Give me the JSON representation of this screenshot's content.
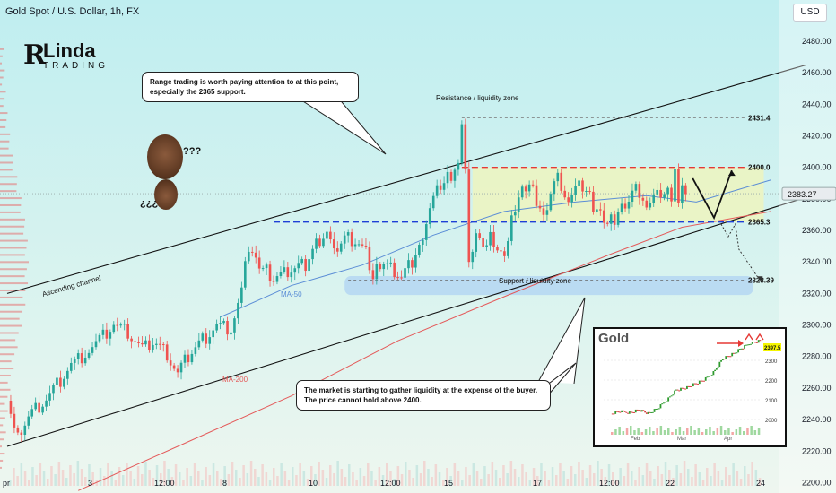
{
  "header": {
    "symbol_title": "Gold Spot / U.S. Dollar, 1h, FX",
    "currency": "USD"
  },
  "logo": {
    "name": "Linda",
    "sub": "TRADING"
  },
  "annotations": {
    "callout_top": "Range trading is worth paying attention to at this point, especially the 2365 support.",
    "callout_bottom": "The market is starting to gather liquidity at the expense of the buyer. The price cannot hold above 2400.",
    "resistance_zone": "Resistance / liquidity zone",
    "support_zone": "Support / liquidity zone",
    "ascending_channel": "Ascending channel",
    "ma50": "MA-50",
    "ma200": "MA-200",
    "question_marks": "???",
    "inverted_question_marks": "¿¿¿"
  },
  "colors": {
    "up": "#26a69a",
    "down": "#ef5350",
    "ma50": "#5b8dd6",
    "ma200": "#e45a5a",
    "res_line": "#e53935",
    "sup_line": "#1e3fd6",
    "range_fill": "#f1f4b8",
    "support_zone_fill": "#b6d8f2",
    "price_label_bg": "#e8ecef"
  },
  "chart_data": {
    "type": "line",
    "title": "Gold Spot / U.S. Dollar, 1h, FX",
    "y_axis": {
      "ylim": [
        2198,
        2497
      ],
      "ticks": [
        2200,
        2220,
        2240,
        2260,
        2280,
        2300,
        2320,
        2340,
        2360,
        2380,
        2400,
        2420,
        2440,
        2460,
        2480
      ],
      "current_price": "2383.27"
    },
    "x_axis": {
      "tick_labels": [
        "pr",
        "3",
        "12:00",
        "8",
        "10",
        "12:00",
        "15",
        "17",
        "12:00",
        "22",
        "24"
      ]
    },
    "price_path": [
      [
        0,
        2252
      ],
      [
        0.1,
        2240
      ],
      [
        0.3,
        2230
      ],
      [
        0.6,
        2242
      ],
      [
        1,
        2250
      ],
      [
        1.4,
        2262
      ],
      [
        1.8,
        2275
      ],
      [
        2.2,
        2282
      ],
      [
        2.6,
        2290
      ],
      [
        3,
        2300
      ],
      [
        3.4,
        2295
      ],
      [
        3.8,
        2285
      ],
      [
        4.1,
        2290
      ],
      [
        4.5,
        2282
      ],
      [
        4.8,
        2270
      ],
      [
        5.1,
        2280
      ],
      [
        5.5,
        2290
      ],
      [
        5.9,
        2300
      ],
      [
        6.3,
        2298
      ],
      [
        6.6,
        2322
      ],
      [
        6.8,
        2350
      ],
      [
        7,
        2340
      ],
      [
        7.2,
        2337
      ],
      [
        7.5,
        2330
      ],
      [
        7.8,
        2333
      ],
      [
        8.1,
        2336
      ],
      [
        8.4,
        2338
      ],
      [
        8.7,
        2352
      ],
      [
        9,
        2360
      ],
      [
        9.2,
        2345
      ],
      [
        9.5,
        2355
      ],
      [
        9.8,
        2353
      ],
      [
        10.1,
        2345
      ],
      [
        10.3,
        2330
      ],
      [
        10.5,
        2340
      ],
      [
        10.8,
        2336
      ],
      [
        11.1,
        2330
      ],
      [
        11.4,
        2340
      ],
      [
        11.6,
        2350
      ],
      [
        11.9,
        2375
      ],
      [
        12.1,
        2385
      ],
      [
        12.3,
        2390
      ],
      [
        12.5,
        2395
      ],
      [
        12.7,
        2400
      ],
      [
        12.8,
        2430
      ],
      [
        12.9,
        2395
      ],
      [
        13,
        2340
      ],
      [
        13.2,
        2360
      ],
      [
        13.4,
        2345
      ],
      [
        13.6,
        2358
      ],
      [
        13.8,
        2350
      ],
      [
        14,
        2340
      ],
      [
        14.1,
        2355
      ],
      [
        14.3,
        2375
      ],
      [
        14.5,
        2385
      ],
      [
        14.7,
        2390
      ],
      [
        14.9,
        2380
      ],
      [
        15.1,
        2368
      ],
      [
        15.3,
        2385
      ],
      [
        15.5,
        2392
      ],
      [
        15.7,
        2380
      ],
      [
        15.9,
        2385
      ],
      [
        16.1,
        2388
      ],
      [
        16.3,
        2385
      ],
      [
        16.5,
        2375
      ],
      [
        16.7,
        2370
      ],
      [
        16.9,
        2365
      ],
      [
        17.1,
        2368
      ],
      [
        17.3,
        2375
      ],
      [
        17.5,
        2380
      ],
      [
        17.7,
        2385
      ],
      [
        17.9,
        2378
      ],
      [
        18.1,
        2380
      ],
      [
        18.3,
        2382
      ],
      [
        18.5,
        2383
      ],
      [
        18.7,
        2382
      ],
      [
        18.8,
        2398
      ],
      [
        18.9,
        2380
      ],
      [
        19,
        2385
      ],
      [
        19.1,
        2383
      ]
    ],
    "levels": [
      {
        "label": "2431.4",
        "value": 2431.4
      },
      {
        "label": "2400.0",
        "value": 2400.0
      },
      {
        "label": "2365.3",
        "value": 2365.3
      },
      {
        "label": "2328.39",
        "value": 2328.39
      }
    ],
    "channel": {
      "upper": [
        [
          0,
          2320
        ],
        [
          22.5,
          2465
        ]
      ],
      "lower": [
        [
          0,
          2223
        ],
        [
          22.5,
          2381
        ]
      ]
    },
    "projection": {
      "main": [
        [
          19.3,
          2393
        ],
        [
          19.9,
          2368
        ],
        [
          20.4,
          2398
        ]
      ],
      "alt": [
        [
          20.1,
          2364
        ],
        [
          20.3,
          2356
        ],
        [
          20.5,
          2364
        ],
        [
          20.6,
          2348
        ],
        [
          21.2,
          2328
        ]
      ]
    },
    "ma50": [
      [
        6,
        2305
      ],
      [
        8,
        2325
      ],
      [
        10,
        2338
      ],
      [
        12,
        2357
      ],
      [
        14,
        2372
      ],
      [
        16,
        2378
      ],
      [
        18,
        2382
      ],
      [
        19.4,
        2378
      ],
      [
        21.5,
        2392
      ]
    ],
    "ma200": [
      [
        2,
        2195
      ],
      [
        5,
        2225
      ],
      [
        8,
        2255
      ],
      [
        11,
        2290
      ],
      [
        14,
        2318
      ],
      [
        17,
        2345
      ],
      [
        19,
        2362
      ],
      [
        21.5,
        2372
      ]
    ],
    "inset": {
      "title": "Gold",
      "price_badge": "2397.5",
      "ticks": [
        "2300",
        "2200",
        "2100",
        "2000"
      ],
      "x_labels": [
        "Feb",
        "Mar",
        "Apr"
      ],
      "path": [
        [
          0,
          2030
        ],
        [
          0.1,
          2040
        ],
        [
          0.2,
          2035
        ],
        [
          0.3,
          2050
        ],
        [
          0.4,
          2030
        ],
        [
          0.5,
          2055
        ],
        [
          0.6,
          2100
        ],
        [
          0.7,
          2150
        ],
        [
          0.8,
          2160
        ],
        [
          0.9,
          2180
        ],
        [
          1,
          2200
        ],
        [
          1.1,
          2240
        ],
        [
          1.2,
          2310
        ],
        [
          1.3,
          2330
        ],
        [
          1.4,
          2360
        ],
        [
          1.5,
          2390
        ],
        [
          1.6,
          2400
        ]
      ]
    }
  }
}
